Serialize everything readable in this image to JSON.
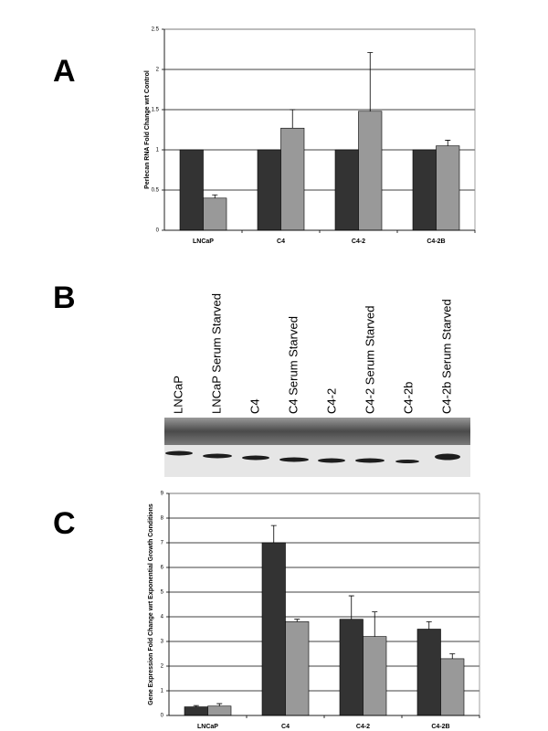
{
  "panels": [
    "A",
    "B",
    "C"
  ],
  "blot": {
    "lanes": [
      "LNCaP",
      "LNCaP Serum Starved",
      "C4",
      "C4 Serum Starved",
      "C4-2",
      "C4-2 Serum Starved",
      "C4-2b",
      "C4-2b Serum Starved"
    ]
  },
  "chart_data": [
    {
      "type": "bar",
      "ylabel": "Perlecan RNA Fold Change wrt Control",
      "categories": [
        "LNCaP",
        "C4",
        "C4-2",
        "C4-2B"
      ],
      "series": [
        {
          "color": "#333333",
          "values": [
            1,
            1,
            1,
            1
          ]
        },
        {
          "color": "#999999",
          "values": [
            0.4,
            1.27,
            1.48,
            1.05
          ],
          "errors": [
            0.04,
            0.23,
            0.73,
            0.07
          ]
        }
      ],
      "ylim": [
        0,
        2.5
      ],
      "yticks": [
        0,
        0.5,
        1,
        1.5,
        2,
        2.5
      ],
      "grid": true
    },
    {
      "type": "bar",
      "ylabel": "Gene Expression Fold Change wrt Exponential Growth Conditions",
      "categories": [
        "LNCaP",
        "C4",
        "C4-2",
        "C4-2B"
      ],
      "series": [
        {
          "color": "#333333",
          "values": [
            0.35,
            7.0,
            3.9,
            3.5
          ],
          "errors": [
            0.05,
            0.7,
            0.95,
            0.3
          ]
        },
        {
          "color": "#999999",
          "values": [
            0.38,
            3.8,
            3.2,
            2.3
          ],
          "errors": [
            0.1,
            0.1,
            1.0,
            0.2
          ]
        }
      ],
      "ylim": [
        0,
        9
      ],
      "yticks": [
        0,
        1,
        2,
        3,
        4,
        5,
        6,
        7,
        8,
        9
      ],
      "grid": true
    }
  ]
}
